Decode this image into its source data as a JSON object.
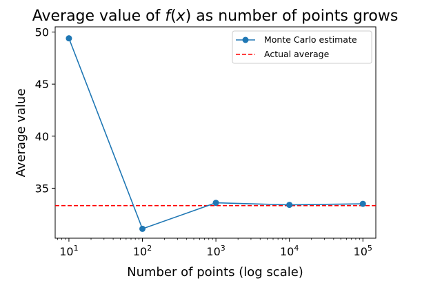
{
  "chart_data": {
    "type": "line",
    "title": {
      "prefix": "Average value of ",
      "func": "f",
      "open": "(",
      "var": "x",
      "close": ")",
      "suffix": " as number of points grows"
    },
    "xlabel": "Number of points (log scale)",
    "ylabel": "Average value",
    "x_scale": "log",
    "xlim": [
      6.5,
      150000
    ],
    "ylim": [
      30.2,
      50.5
    ],
    "x_ticks": [
      {
        "value": 10,
        "base": "10",
        "exp": "1"
      },
      {
        "value": 100,
        "base": "10",
        "exp": "2"
      },
      {
        "value": 1000,
        "base": "10",
        "exp": "3"
      },
      {
        "value": 10000,
        "base": "10",
        "exp": "4"
      },
      {
        "value": 100000,
        "base": "10",
        "exp": "5"
      }
    ],
    "y_ticks": [
      {
        "value": 35,
        "label": "35"
      },
      {
        "value": 40,
        "label": "40"
      },
      {
        "value": 45,
        "label": "45"
      },
      {
        "value": 50,
        "label": "50"
      }
    ],
    "series": [
      {
        "name": "Monte Carlo estimate",
        "color": "#1f77b4",
        "marker": "circle",
        "x": [
          10,
          100,
          1000,
          10000,
          100000
        ],
        "y": [
          49.4,
          31.1,
          33.6,
          33.4,
          33.5
        ]
      }
    ],
    "reference_line": {
      "name": "Actual average",
      "value": 33.33,
      "color": "#ff0000",
      "style": "dashed"
    },
    "grid": false,
    "legend_position": "top-right"
  }
}
